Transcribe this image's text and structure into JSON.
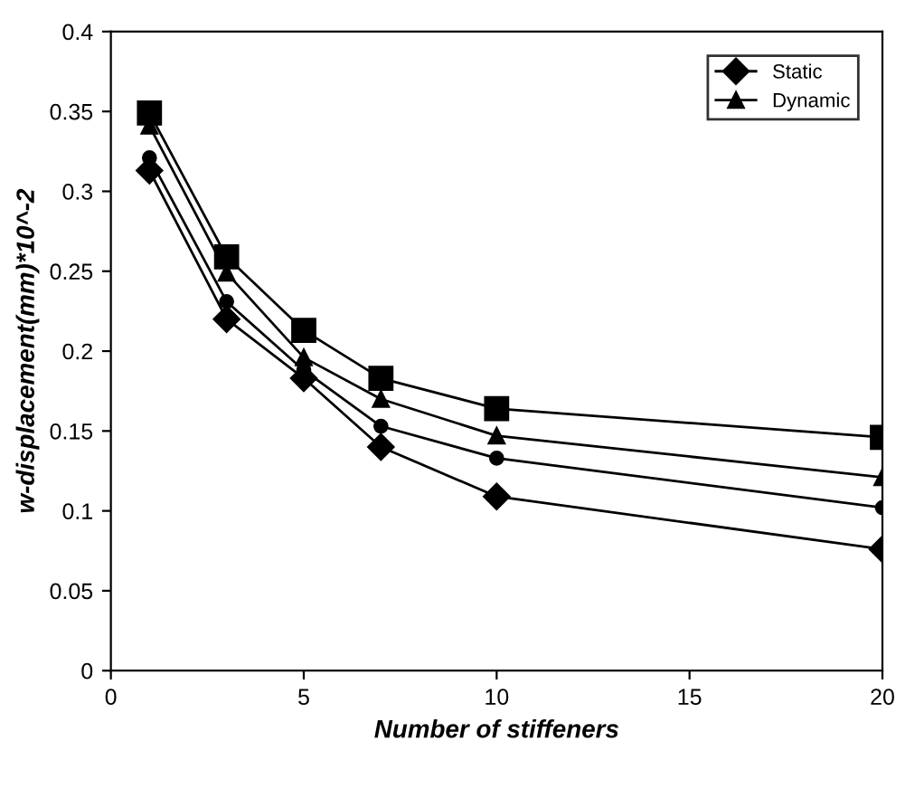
{
  "chart_data": {
    "type": "line",
    "xlabel": "Number of stiffeners",
    "ylabel": "w-displacement(mm)*10^-2",
    "x": [
      1,
      3,
      5,
      7,
      10,
      20
    ],
    "series": [
      {
        "name": "Static",
        "color": "#000000",
        "marker": "diamond",
        "values": [
          0.313,
          0.22,
          0.183,
          0.14,
          0.109,
          0.076
        ]
      },
      {
        "name": "Dynamic",
        "color": "#000000",
        "marker": "triangle",
        "values": [
          0.341,
          0.249,
          0.196,
          0.17,
          0.147,
          0.121
        ]
      },
      {
        "color": "#000000",
        "marker": "circle",
        "values": [
          0.321,
          0.231,
          0.188,
          0.153,
          0.133,
          0.102
        ]
      },
      {
        "color": "#000000",
        "marker": "square",
        "values": [
          0.349,
          0.259,
          0.213,
          0.183,
          0.164,
          0.146
        ]
      }
    ],
    "xlim": [
      0,
      20
    ],
    "xticks": [
      0,
      5,
      10,
      15,
      20
    ],
    "ylim": [
      0,
      0.4
    ],
    "yticks": [
      0,
      0.05,
      0.1,
      0.15,
      0.2,
      0.25,
      0.3,
      0.35,
      0.4
    ],
    "legend": "top right",
    "grid": false,
    "line_style": "solid"
  }
}
